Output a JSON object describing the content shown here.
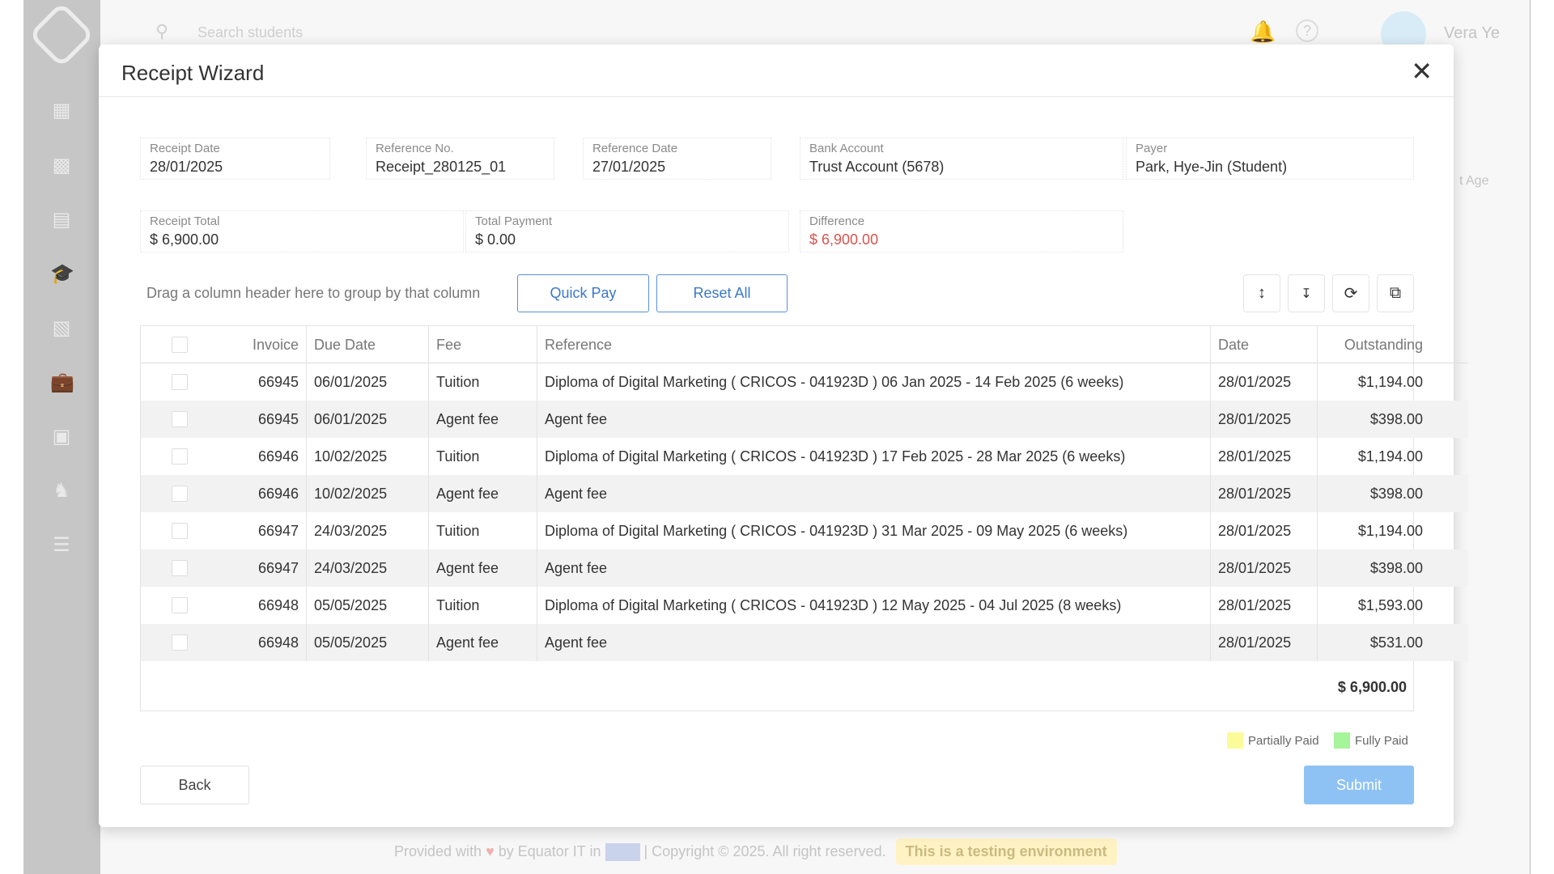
{
  "background": {
    "search_placeholder": "Search students",
    "user_name": "Vera Ye",
    "column_hint": "t Age",
    "footer": {
      "provided": "Provided with",
      "by": "by Equator IT in",
      "copyright": "| Copyright © 2025. All right reserved.",
      "test_env": "This is a testing environment"
    },
    "sidebar_icons": [
      "dashboard-icon",
      "contacts-icon",
      "documents-icon",
      "graduation-icon",
      "layout-icon",
      "briefcase-icon",
      "invoice-icon",
      "users-icon",
      "settings-sliders-icon"
    ]
  },
  "modal": {
    "title": "Receipt Wizard",
    "fields": [
      {
        "label": "Receipt Date",
        "value": "28/01/2025"
      },
      {
        "label": "Reference No.",
        "value": "Receipt_280125_01"
      },
      {
        "label": "Reference Date",
        "value": "27/01/2025"
      },
      {
        "label": "Bank Account",
        "value": "Trust Account (5678)"
      },
      {
        "label": "Payer",
        "value": "Park, Hye-Jin (Student)"
      },
      {
        "label": "Receipt Total",
        "value": "$ 6,900.00"
      },
      {
        "label": "Total Payment",
        "value": "$ 0.00"
      },
      {
        "label": "Difference",
        "value": "$ 6,900.00"
      }
    ],
    "group_hint": "Drag a column header here to group by that column",
    "quick_pay": "Quick Pay",
    "reset_all": "Reset All",
    "columns": [
      "Invoice",
      "Due Date",
      "Fee",
      "Reference",
      "Date",
      "Outstanding"
    ],
    "rows": [
      {
        "invoice": "66945",
        "due": "06/01/2025",
        "fee": "Tuition",
        "reference": "Diploma of Digital Marketing ( CRICOS - 041923D ) 06 Jan 2025 - 14 Feb 2025 (6 weeks)",
        "date": "28/01/2025",
        "outstanding": "$1,194.00"
      },
      {
        "invoice": "66945",
        "due": "06/01/2025",
        "fee": "Agent fee",
        "reference": "Agent fee",
        "date": "28/01/2025",
        "outstanding": "$398.00"
      },
      {
        "invoice": "66946",
        "due": "10/02/2025",
        "fee": "Tuition",
        "reference": "Diploma of Digital Marketing ( CRICOS - 041923D ) 17 Feb 2025 - 28 Mar 2025 (6 weeks)",
        "date": "28/01/2025",
        "outstanding": "$1,194.00"
      },
      {
        "invoice": "66946",
        "due": "10/02/2025",
        "fee": "Agent fee",
        "reference": "Agent fee",
        "date": "28/01/2025",
        "outstanding": "$398.00"
      },
      {
        "invoice": "66947",
        "due": "24/03/2025",
        "fee": "Tuition",
        "reference": "Diploma of Digital Marketing ( CRICOS - 041923D ) 31 Mar 2025 - 09 May 2025 (6 weeks)",
        "date": "28/01/2025",
        "outstanding": "$1,194.00"
      },
      {
        "invoice": "66947",
        "due": "24/03/2025",
        "fee": "Agent fee",
        "reference": "Agent fee",
        "date": "28/01/2025",
        "outstanding": "$398.00"
      },
      {
        "invoice": "66948",
        "due": "05/05/2025",
        "fee": "Tuition",
        "reference": "Diploma of Digital Marketing ( CRICOS - 041923D ) 12 May 2025 - 04 Jul 2025 (8 weeks)",
        "date": "28/01/2025",
        "outstanding": "$1,593.00"
      },
      {
        "invoice": "66948",
        "due": "05/05/2025",
        "fee": "Agent fee",
        "reference": "Agent fee",
        "date": "28/01/2025",
        "outstanding": "$531.00"
      }
    ],
    "total": "$ 6,900.00",
    "legend": [
      {
        "label": "Partially Paid",
        "color": "#fbfb9a"
      },
      {
        "label": "Fully Paid",
        "color": "#a6f59a"
      }
    ],
    "back": "Back",
    "submit": "Submit",
    "colors": {
      "accent": "#3b78c9",
      "difference": "#d9534f",
      "submit": "#8ec2f5"
    }
  }
}
